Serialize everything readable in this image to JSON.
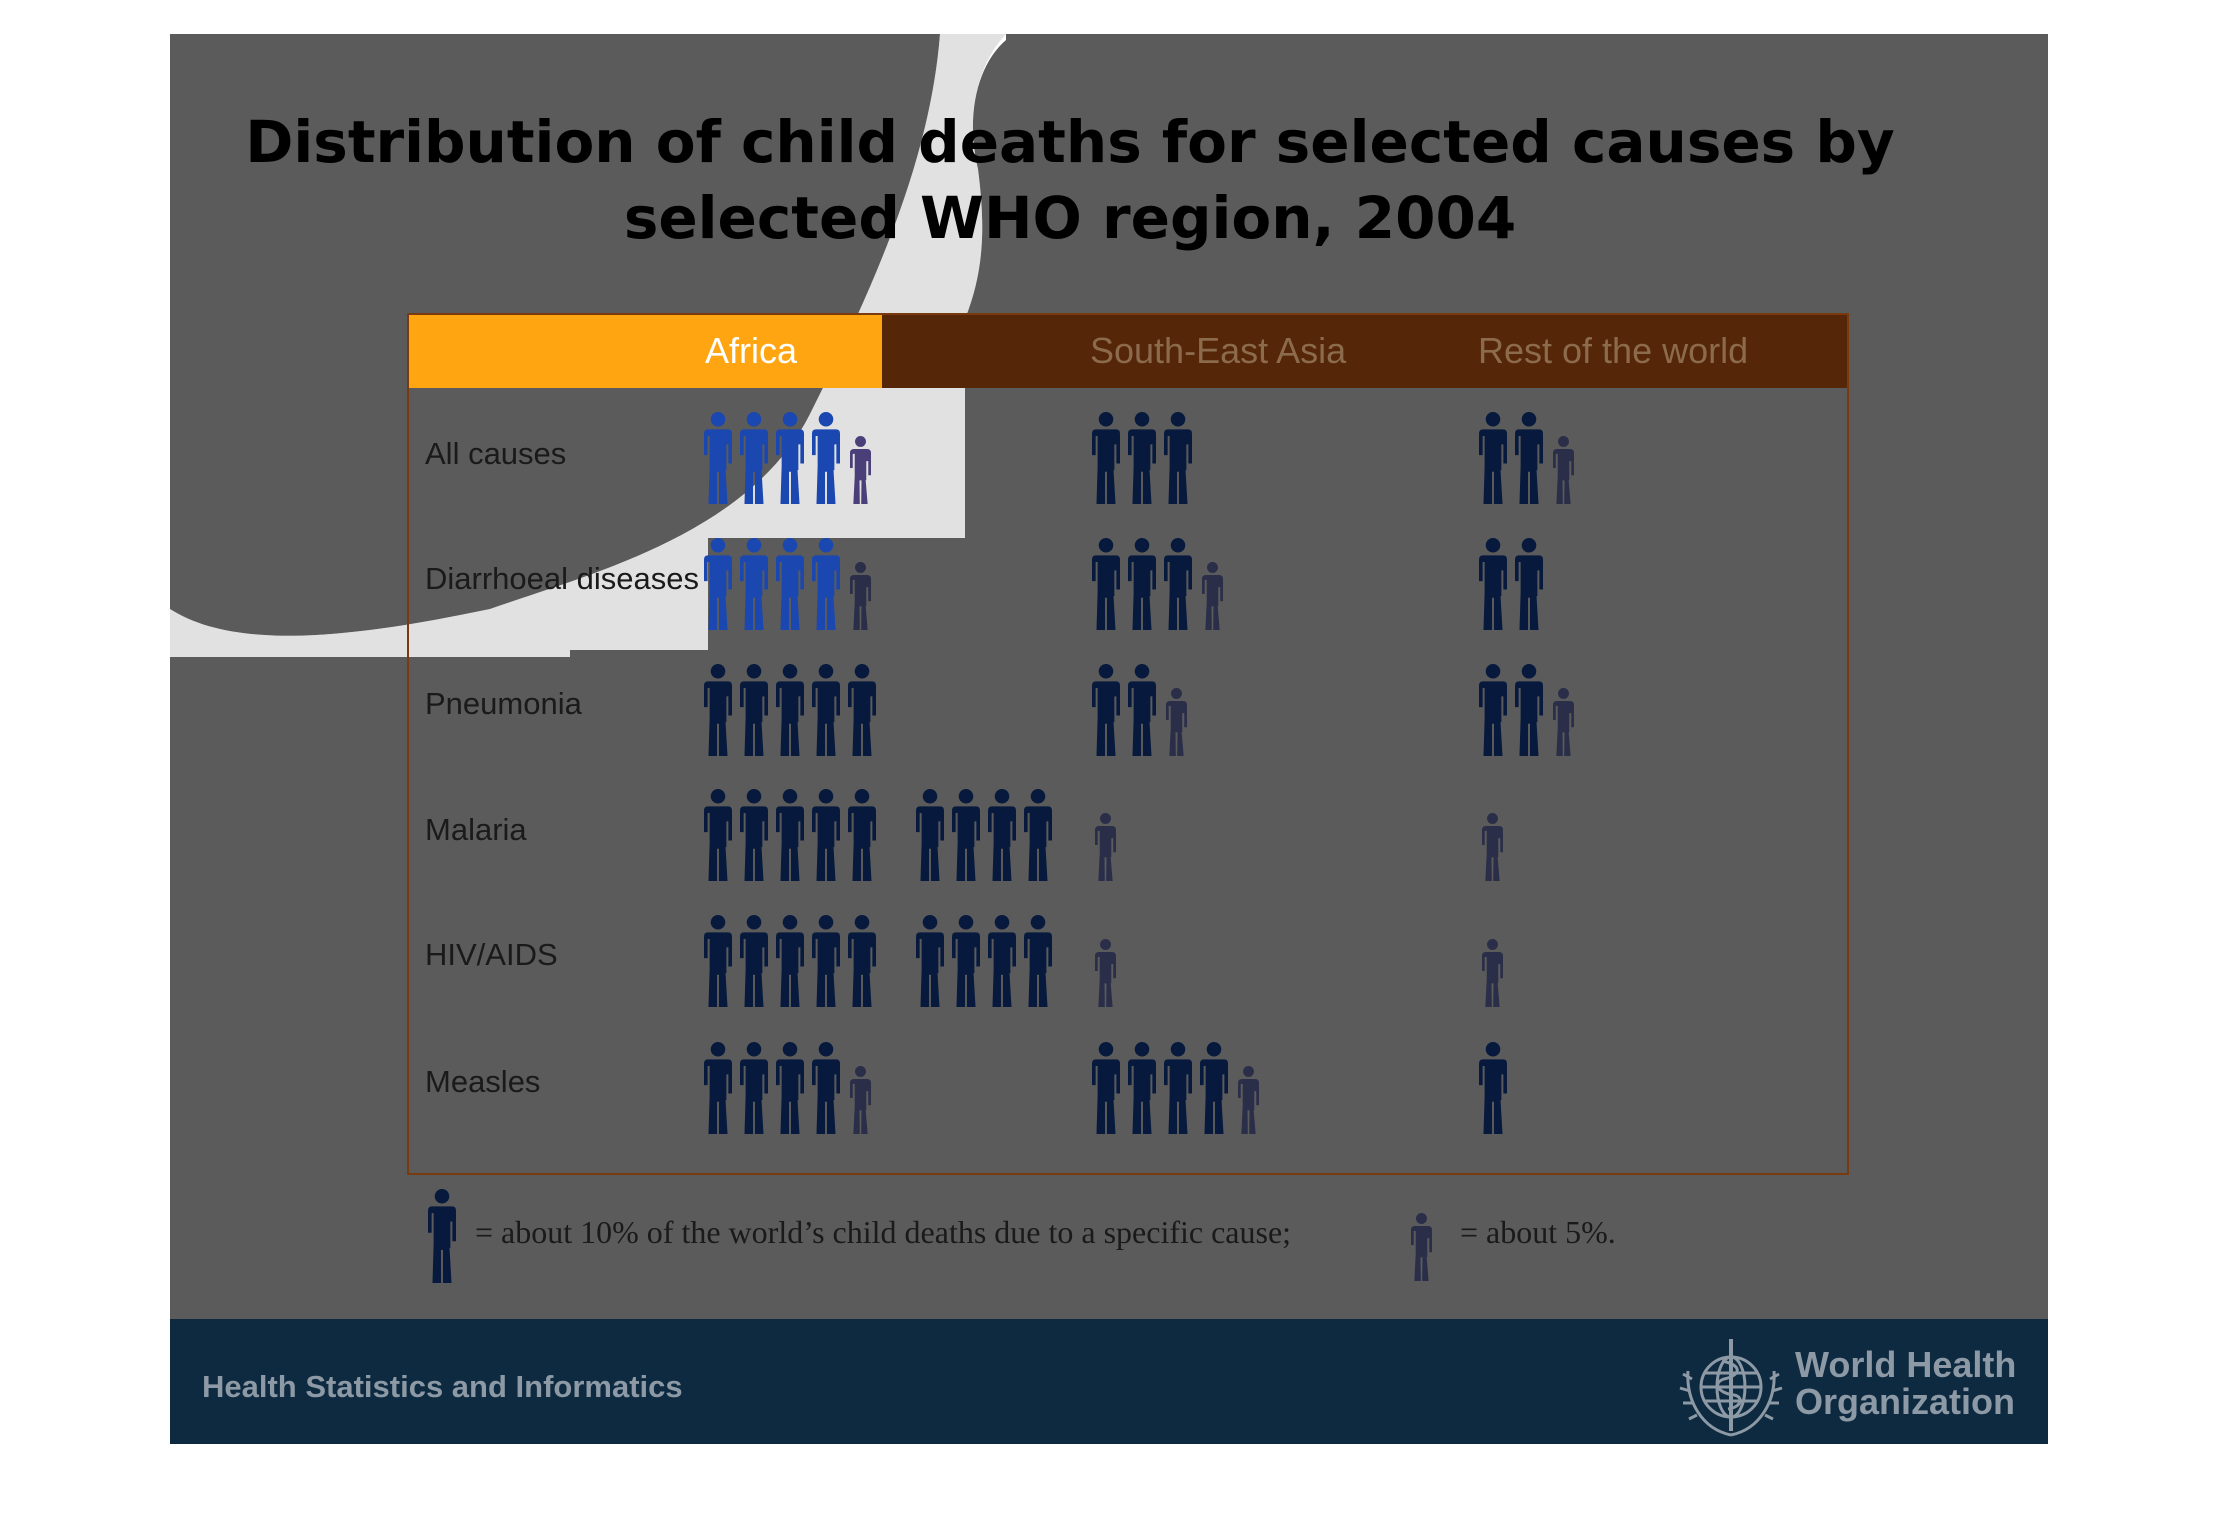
{
  "title": {
    "line1": "Distribution of child deaths for selected causes by",
    "line2": "selected WHO region, 2004"
  },
  "colors": {
    "slide_background": "#5b5b5b",
    "header_africa": "#ffa512",
    "header_other": "#552608",
    "figure_blue": "#1a47b0",
    "figure_navy": "#071a3d",
    "figure_small": "#2a2e48",
    "footer": "#0d2a41",
    "footer_text": "#8d9aa5"
  },
  "chart_data": {
    "type": "table",
    "columns": [
      "Africa",
      "South-East Asia",
      "Rest of the world"
    ],
    "rows": [
      {
        "cause": "All causes",
        "values": [
          45,
          30,
          25
        ]
      },
      {
        "cause": "Diarrhoeal diseases",
        "values": [
          45,
          35,
          20
        ]
      },
      {
        "cause": "Pneumonia",
        "values": [
          50,
          25,
          25
        ]
      },
      {
        "cause": "Malaria",
        "values": [
          90,
          5,
          5
        ]
      },
      {
        "cause": "HIV/AIDS",
        "values": [
          90,
          5,
          5
        ]
      },
      {
        "cause": "Measles",
        "values": [
          45,
          45,
          10
        ]
      }
    ],
    "unit_note": "one large figure = 10%, one small figure = 5%"
  },
  "legend": {
    "large_text": "= about 10% of the world’s child deaths due to a specific cause;",
    "small_text": "= about 5%."
  },
  "footer": {
    "left_text": "Health Statistics and Informatics",
    "org_line1": "World Health",
    "org_line2": "Organization"
  },
  "icons": {
    "legend_large": "person-large-icon",
    "legend_small": "person-small-icon",
    "logo": "who-emblem-icon"
  }
}
